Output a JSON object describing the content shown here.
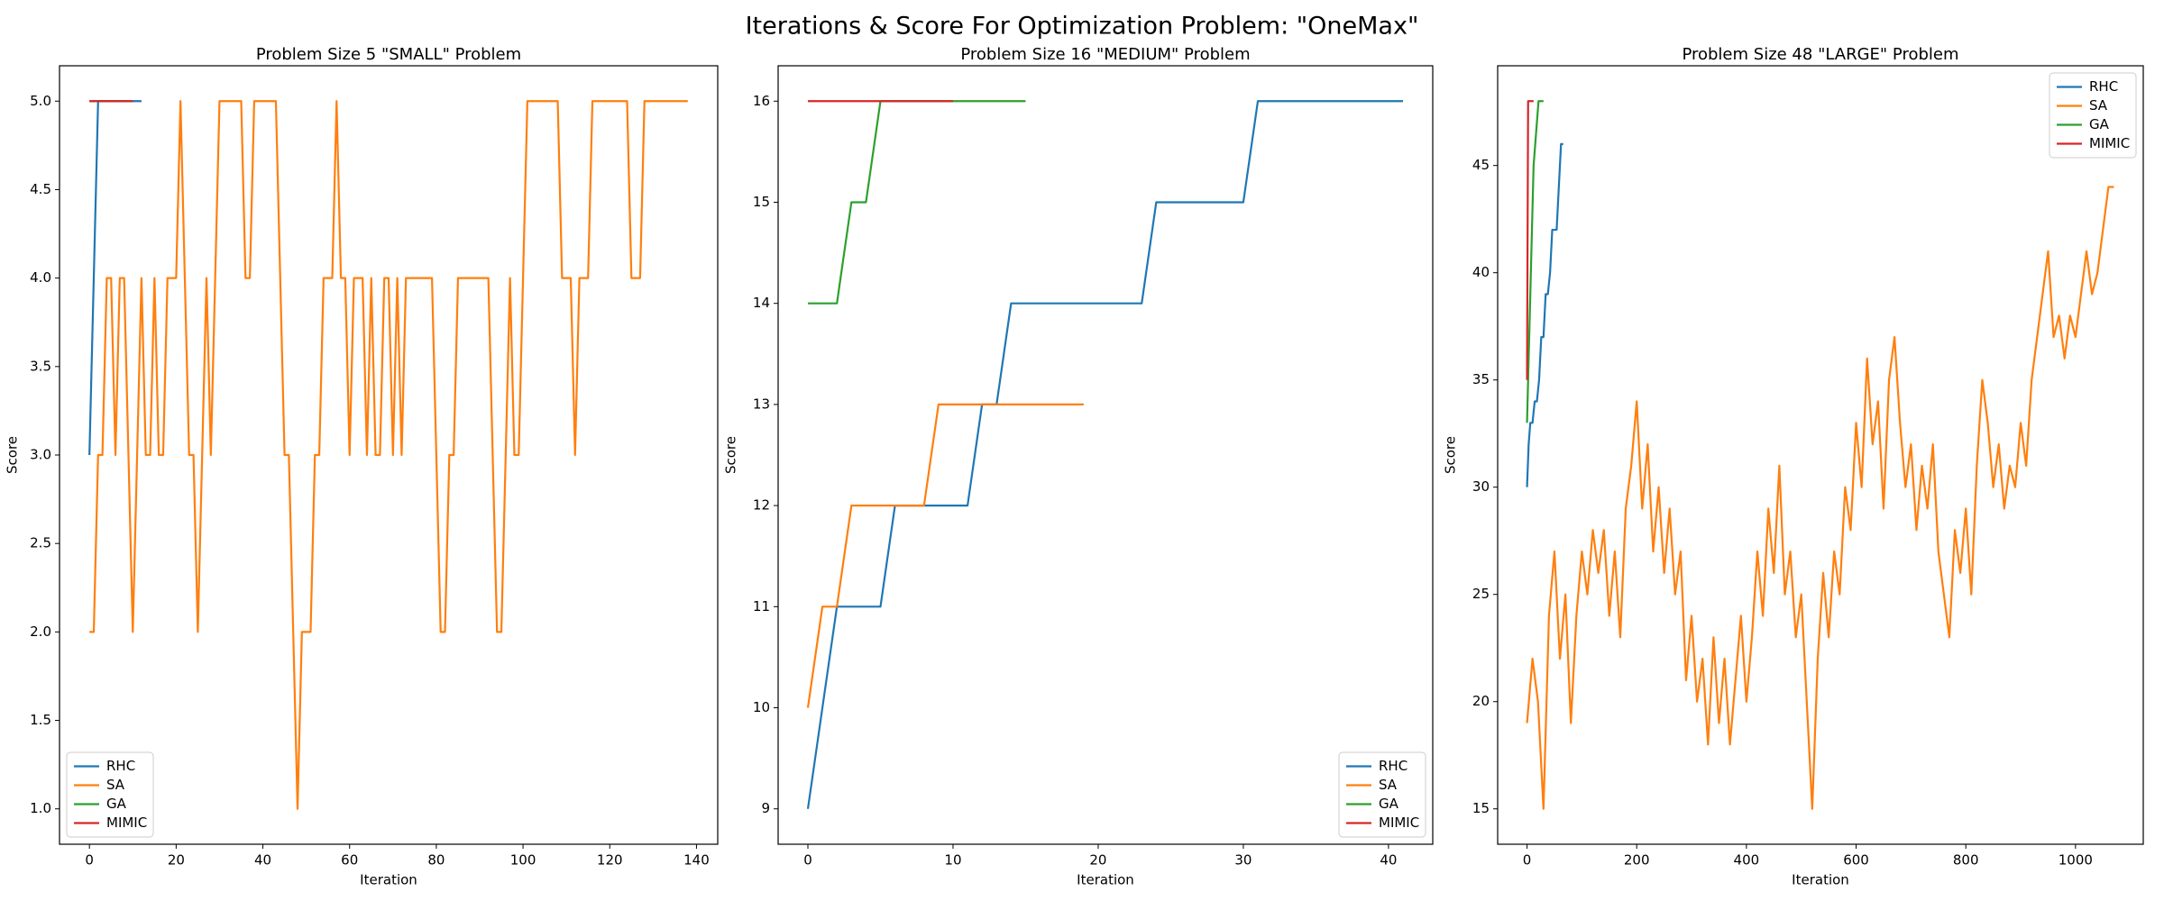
{
  "title": "Iterations & Score For Optimization Problem: \"OneMax\"",
  "chart_data": [
    {
      "type": "line",
      "title": "Problem Size 5 \"SMALL\" Problem",
      "xlabel": "Iteration",
      "ylabel": "Score",
      "xlim": [
        -6.9,
        144.9
      ],
      "ylim": [
        0.8,
        5.2
      ],
      "xticks": [
        0,
        20,
        40,
        60,
        80,
        100,
        120,
        140
      ],
      "yticks": [
        {
          "value": 1,
          "label": "1.0"
        },
        {
          "value": 1.5,
          "label": "1.5"
        },
        {
          "value": 2,
          "label": "2.0"
        },
        {
          "value": 2.5,
          "label": "2.5"
        },
        {
          "value": 3,
          "label": "3.0"
        },
        {
          "value": 3.5,
          "label": "3.5"
        },
        {
          "value": 4,
          "label": "4.0"
        },
        {
          "value": 4.5,
          "label": "4.5"
        },
        {
          "value": 5,
          "label": "5.0"
        }
      ],
      "legend": "lower left",
      "series": [
        {
          "name": "RHC",
          "color": "#1f77b4",
          "x": [
            0,
            1,
            2,
            3,
            4,
            5,
            6,
            7,
            8,
            9,
            10,
            11,
            12
          ],
          "values": [
            3,
            4,
            5,
            5,
            5,
            5,
            5,
            5,
            5,
            5,
            5,
            5,
            5
          ]
        },
        {
          "name": "SA",
          "color": "#ff7f0e",
          "x": [
            0,
            1,
            2,
            3,
            4,
            5,
            6,
            7,
            8,
            9,
            10,
            11,
            12,
            13,
            14,
            15,
            16,
            17,
            18,
            19,
            20,
            21,
            22,
            23,
            24,
            25,
            26,
            27,
            28,
            29,
            30,
            31,
            32,
            33,
            34,
            35,
            36,
            37,
            38,
            39,
            40,
            41,
            42,
            43,
            44,
            45,
            46,
            47,
            48,
            49,
            50,
            51,
            52,
            53,
            54,
            55,
            56,
            57,
            58,
            59,
            60,
            61,
            62,
            63,
            64,
            65,
            66,
            67,
            68,
            69,
            70,
            71,
            72,
            73,
            74,
            75,
            76,
            77,
            78,
            79,
            80,
            81,
            82,
            83,
            84,
            85,
            86,
            87,
            88,
            89,
            90,
            91,
            92,
            93,
            94,
            95,
            96,
            97,
            98,
            99,
            100,
            101,
            102,
            103,
            104,
            105,
            106,
            107,
            108,
            109,
            110,
            111,
            112,
            113,
            114,
            115,
            116,
            117,
            118,
            119,
            120,
            121,
            122,
            123,
            124,
            125,
            126,
            127,
            128,
            129,
            130,
            131,
            132,
            133,
            134,
            135,
            136,
            137,
            138
          ],
          "values": [
            2,
            2,
            3,
            3,
            4,
            4,
            3,
            4,
            4,
            3,
            2,
            3,
            4,
            3,
            3,
            4,
            3,
            3,
            4,
            4,
            4,
            5,
            4,
            3,
            3,
            2,
            3,
            4,
            3,
            4,
            5,
            5,
            5,
            5,
            5,
            5,
            4,
            4,
            5,
            5,
            5,
            5,
            5,
            5,
            4,
            3,
            3,
            2,
            1,
            2,
            2,
            2,
            3,
            3,
            4,
            4,
            4,
            5,
            4,
            4,
            3,
            4,
            4,
            4,
            3,
            4,
            3,
            3,
            4,
            4,
            3,
            4,
            3,
            4,
            4,
            4,
            4,
            4,
            4,
            4,
            3,
            2,
            2,
            3,
            3,
            4,
            4,
            4,
            4,
            4,
            4,
            4,
            4,
            3,
            2,
            2,
            3,
            4,
            3,
            3,
            4,
            5,
            5,
            5,
            5,
            5,
            5,
            5,
            5,
            4,
            4,
            4,
            3,
            4,
            4,
            4,
            5,
            5,
            5,
            5,
            5,
            5,
            5,
            5,
            5,
            4,
            4,
            4,
            5,
            5,
            5,
            5,
            5,
            5,
            5,
            5,
            5,
            5,
            5
          ]
        },
        {
          "name": "GA",
          "color": "#2ca02c",
          "x": [
            0,
            1,
            2,
            3,
            4,
            5,
            6,
            7,
            8,
            9,
            10
          ],
          "values": [
            5,
            5,
            5,
            5,
            5,
            5,
            5,
            5,
            5,
            5,
            5
          ]
        },
        {
          "name": "MIMIC",
          "color": "#d62728",
          "x": [
            0,
            1,
            2,
            3,
            4,
            5,
            6,
            7,
            8,
            9,
            10
          ],
          "values": [
            5,
            5,
            5,
            5,
            5,
            5,
            5,
            5,
            5,
            5,
            5
          ]
        }
      ]
    },
    {
      "type": "line",
      "title": "Problem Size 16 \"MEDIUM\" Problem",
      "xlabel": "Iteration",
      "ylabel": "Score",
      "xlim": [
        -2.05,
        43.05
      ],
      "ylim": [
        8.65,
        16.35
      ],
      "xticks": [
        0,
        10,
        20,
        30,
        40
      ],
      "yticks": [
        9,
        10,
        11,
        12,
        13,
        14,
        15,
        16
      ],
      "legend": "lower right",
      "series": [
        {
          "name": "RHC",
          "color": "#1f77b4",
          "x": [
            0,
            1,
            2,
            3,
            4,
            5,
            6,
            7,
            8,
            9,
            10,
            11,
            12,
            13,
            14,
            15,
            16,
            17,
            18,
            19,
            20,
            21,
            22,
            23,
            24,
            25,
            26,
            27,
            28,
            29,
            30,
            31,
            32,
            33,
            34,
            35,
            36,
            37,
            38,
            39,
            40,
            41
          ],
          "values": [
            9,
            10,
            11,
            11,
            11,
            11,
            12,
            12,
            12,
            12,
            12,
            12,
            13,
            13,
            14,
            14,
            14,
            14,
            14,
            14,
            14,
            14,
            14,
            14,
            15,
            15,
            15,
            15,
            15,
            15,
            15,
            16,
            16,
            16,
            16,
            16,
            16,
            16,
            16,
            16,
            16,
            16
          ]
        },
        {
          "name": "SA",
          "color": "#ff7f0e",
          "x": [
            0,
            1,
            2,
            3,
            4,
            5,
            6,
            7,
            8,
            9,
            10,
            11,
            12,
            13,
            14,
            15,
            16,
            17,
            18,
            19
          ],
          "values": [
            10,
            11,
            11,
            12,
            12,
            12,
            12,
            12,
            12,
            13,
            13,
            13,
            13,
            13,
            13,
            13,
            13,
            13,
            13,
            13
          ]
        },
        {
          "name": "GA",
          "color": "#2ca02c",
          "x": [
            0,
            1,
            2,
            3,
            4,
            5,
            6,
            7,
            8,
            9,
            10,
            11,
            12,
            13,
            14,
            15
          ],
          "values": [
            14,
            14,
            14,
            15,
            15,
            16,
            16,
            16,
            16,
            16,
            16,
            16,
            16,
            16,
            16,
            16
          ]
        },
        {
          "name": "MIMIC",
          "color": "#d62728",
          "x": [
            0,
            1,
            2,
            3,
            4,
            5,
            6,
            7,
            8,
            9,
            10
          ],
          "values": [
            16,
            16,
            16,
            16,
            16,
            16,
            16,
            16,
            16,
            16,
            16
          ]
        }
      ]
    },
    {
      "type": "line",
      "title": "Problem Size 48 \"LARGE\" Problem",
      "xlabel": "Iteration",
      "ylabel": "Score",
      "xlim": [
        -53.5,
        1123.5
      ],
      "ylim": [
        13.35,
        49.65
      ],
      "xticks": [
        0,
        200,
        400,
        600,
        800,
        1000
      ],
      "yticks": [
        15,
        20,
        25,
        30,
        35,
        40,
        45
      ],
      "legend": "upper right",
      "series": [
        {
          "name": "RHC",
          "color": "#1f77b4",
          "x": [
            0,
            3,
            6,
            10,
            14,
            18,
            22,
            26,
            30,
            34,
            38,
            42,
            46,
            50,
            54,
            58,
            62,
            66
          ],
          "values": [
            30,
            32,
            33,
            33,
            34,
            34,
            35,
            37,
            37,
            39,
            39,
            40,
            42,
            42,
            42,
            44,
            46,
            46
          ]
        },
        {
          "name": "SA",
          "color": "#ff7f0e",
          "x": [
            0,
            10,
            20,
            30,
            40,
            50,
            60,
            70,
            80,
            90,
            100,
            110,
            120,
            130,
            140,
            150,
            160,
            170,
            180,
            190,
            200,
            210,
            220,
            230,
            240,
            250,
            260,
            270,
            280,
            290,
            300,
            310,
            320,
            330,
            340,
            350,
            360,
            370,
            380,
            390,
            400,
            410,
            420,
            430,
            440,
            450,
            460,
            470,
            480,
            490,
            500,
            510,
            520,
            530,
            540,
            550,
            560,
            570,
            580,
            590,
            600,
            610,
            620,
            630,
            640,
            650,
            660,
            670,
            680,
            690,
            700,
            710,
            720,
            730,
            740,
            750,
            760,
            770,
            780,
            790,
            800,
            810,
            820,
            830,
            840,
            850,
            860,
            870,
            880,
            890,
            900,
            910,
            920,
            930,
            940,
            950,
            960,
            970,
            980,
            990,
            1000,
            1010,
            1020,
            1030,
            1040,
            1050,
            1060,
            1070
          ],
          "values": [
            19,
            22,
            20,
            15,
            24,
            27,
            22,
            25,
            19,
            24,
            27,
            25,
            28,
            26,
            28,
            24,
            27,
            23,
            29,
            31,
            34,
            29,
            32,
            27,
            30,
            26,
            29,
            25,
            27,
            21,
            24,
            20,
            22,
            18,
            23,
            19,
            22,
            18,
            21,
            24,
            20,
            23,
            27,
            24,
            29,
            26,
            31,
            25,
            27,
            23,
            25,
            20,
            15,
            22,
            26,
            23,
            27,
            25,
            30,
            28,
            33,
            30,
            36,
            32,
            34,
            29,
            35,
            37,
            33,
            30,
            32,
            28,
            31,
            29,
            32,
            27,
            25,
            23,
            28,
            26,
            29,
            25,
            31,
            35,
            33,
            30,
            32,
            29,
            31,
            30,
            33,
            31,
            35,
            37,
            39,
            41,
            37,
            38,
            36,
            38,
            37,
            39,
            41,
            39,
            40,
            42,
            44,
            44
          ]
        },
        {
          "name": "GA",
          "color": "#2ca02c",
          "x": [
            0,
            3,
            6,
            9,
            12,
            15,
            18,
            21,
            30
          ],
          "values": [
            33,
            36,
            39,
            42,
            45,
            46,
            47,
            48,
            48
          ]
        },
        {
          "name": "MIMIC",
          "color": "#d62728",
          "x": [
            0,
            2,
            4,
            6,
            8,
            10,
            12
          ],
          "values": [
            35,
            48,
            48,
            48,
            48,
            48,
            48
          ]
        }
      ]
    }
  ]
}
